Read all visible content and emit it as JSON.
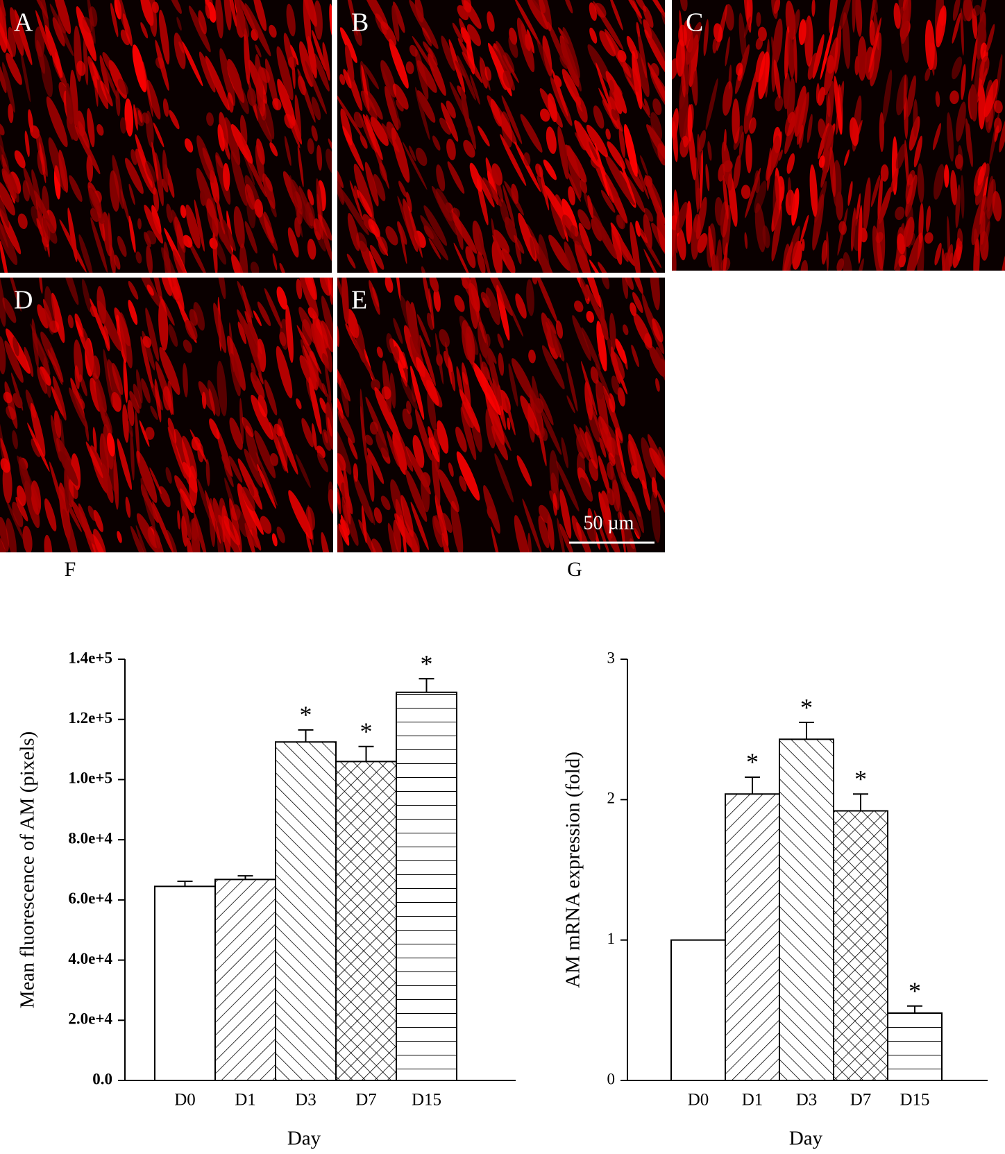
{
  "panels": [
    {
      "label": "A"
    },
    {
      "label": "B"
    },
    {
      "label": "C"
    },
    {
      "label": "D"
    },
    {
      "label": "E"
    }
  ],
  "scale_bar": "50 µm",
  "chart_data": [
    {
      "type": "bar",
      "panel_label": "F",
      "x_label": "Day",
      "y_label": "Mean fluorescence of AM (pixels)",
      "categories": [
        "D0",
        "D1",
        "D3",
        "D7",
        "D15"
      ],
      "values": [
        64500,
        66800,
        112500,
        106000,
        129000
      ],
      "errors": [
        1700,
        1200,
        4000,
        5000,
        4500
      ],
      "significance": [
        null,
        null,
        "*",
        "*",
        "*"
      ],
      "hatch": [
        "none",
        "/",
        "\\",
        "x",
        "-"
      ],
      "ylim": [
        0,
        140000
      ],
      "yticks": [
        {
          "value": 0,
          "label": "0.0"
        },
        {
          "value": 20000,
          "label": "2.0e+4"
        },
        {
          "value": 40000,
          "label": "4.0e+4"
        },
        {
          "value": 60000,
          "label": "6.0e+4"
        },
        {
          "value": 80000,
          "label": "8.0e+4"
        },
        {
          "value": 100000,
          "label": "1.0e+5"
        },
        {
          "value": 120000,
          "label": "1.2e+5"
        },
        {
          "value": 140000,
          "label": "1.4e+5"
        }
      ],
      "color": "#000000"
    },
    {
      "type": "bar",
      "panel_label": "G",
      "x_label": "Day",
      "y_label": "AM mRNA expression (fold)",
      "categories": [
        "D0",
        "D1",
        "D3",
        "D7",
        "D15"
      ],
      "values": [
        1.0,
        2.04,
        2.43,
        1.92,
        0.48
      ],
      "errors": [
        null,
        0.12,
        0.12,
        0.12,
        0.05
      ],
      "significance": [
        null,
        "*",
        "*",
        "*",
        "*"
      ],
      "hatch": [
        "none",
        "/",
        "\\",
        "x",
        "-"
      ],
      "ylim": [
        0,
        3
      ],
      "yticks": [
        0,
        1,
        2,
        3
      ],
      "color": "#000000"
    }
  ]
}
